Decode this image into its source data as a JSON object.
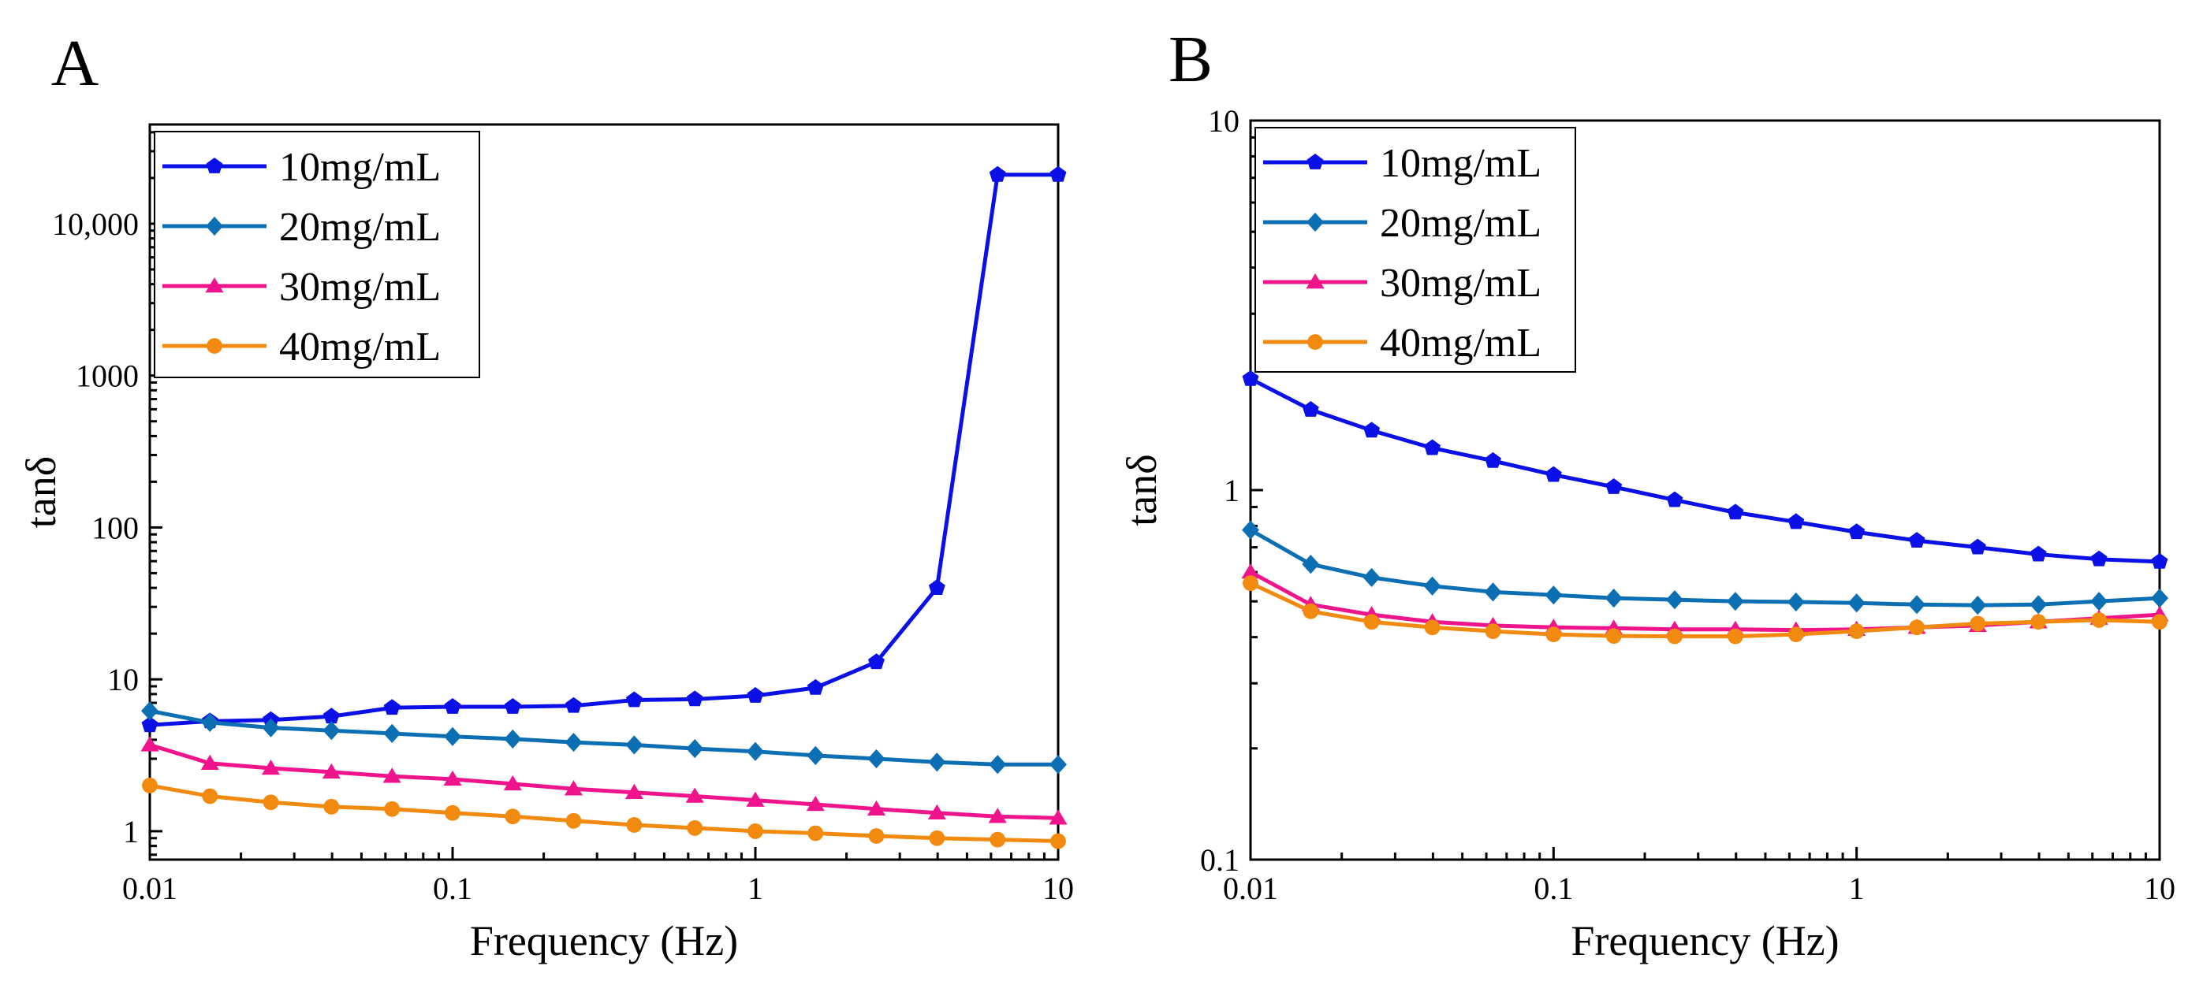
{
  "chart_data": [
    {
      "panel_label": "A",
      "type": "line",
      "xscale": "log",
      "yscale": "log",
      "xlim": [
        0.01,
        10
      ],
      "ylim": [
        0.65,
        45000
      ],
      "xlabel": "Frequency (Hz)",
      "ylabel": "tanδ",
      "xticks": [
        {
          "value": 0.01,
          "label": "0.01"
        },
        {
          "value": 0.1,
          "label": "0.1"
        },
        {
          "value": 1,
          "label": "1"
        },
        {
          "value": 10,
          "label": "10"
        }
      ],
      "yticks": [
        {
          "value": 1,
          "label": "1"
        },
        {
          "value": 10,
          "label": "10"
        },
        {
          "value": 100,
          "label": "100"
        },
        {
          "value": 1000,
          "label": "1000"
        },
        {
          "value": 10000,
          "label": "10,000"
        }
      ],
      "legend_position": "top-left",
      "x": [
        0.01,
        0.0158,
        0.0251,
        0.0398,
        0.0631,
        0.1,
        0.158,
        0.251,
        0.398,
        0.631,
        1,
        1.58,
        2.51,
        3.98,
        6.31,
        10
      ],
      "series": [
        {
          "name": "10mg/mL",
          "color": "#0a10e6",
          "marker": "pentagon",
          "values": [
            5.0,
            5.3,
            5.4,
            5.7,
            6.5,
            6.6,
            6.6,
            6.7,
            7.3,
            7.4,
            7.8,
            8.8,
            13,
            40,
            21000,
            21000
          ]
        },
        {
          "name": "20mg/mL",
          "color": "#0c6fb4",
          "marker": "diamond",
          "values": [
            6.2,
            5.2,
            4.8,
            4.6,
            4.4,
            4.2,
            4.05,
            3.85,
            3.7,
            3.5,
            3.35,
            3.15,
            3.0,
            2.85,
            2.75,
            2.75
          ]
        },
        {
          "name": "30mg/mL",
          "color": "#f0148c",
          "marker": "triangle",
          "values": [
            3.7,
            2.8,
            2.6,
            2.45,
            2.3,
            2.2,
            2.05,
            1.9,
            1.8,
            1.7,
            1.6,
            1.5,
            1.4,
            1.32,
            1.25,
            1.22
          ]
        },
        {
          "name": "40mg/mL",
          "color": "#f28a0f",
          "marker": "circle",
          "values": [
            2.0,
            1.7,
            1.55,
            1.45,
            1.4,
            1.32,
            1.25,
            1.17,
            1.1,
            1.05,
            1.0,
            0.97,
            0.93,
            0.9,
            0.88,
            0.86
          ]
        }
      ]
    },
    {
      "panel_label": "B",
      "type": "line",
      "xscale": "log",
      "yscale": "log",
      "xlim": [
        0.01,
        10
      ],
      "ylim": [
        0.1,
        10
      ],
      "xlabel": "Frequency (Hz)",
      "ylabel": "tanδ",
      "xticks": [
        {
          "value": 0.01,
          "label": "0.01"
        },
        {
          "value": 0.1,
          "label": "0.1"
        },
        {
          "value": 1,
          "label": "1"
        },
        {
          "value": 10,
          "label": "10"
        }
      ],
      "yticks": [
        {
          "value": 0.1,
          "label": "0.1"
        },
        {
          "value": 1,
          "label": "1"
        },
        {
          "value": 10,
          "label": "10"
        }
      ],
      "legend_position": "top-left",
      "x": [
        0.01,
        0.0158,
        0.0251,
        0.0398,
        0.0631,
        0.1,
        0.158,
        0.251,
        0.398,
        0.631,
        1,
        1.58,
        2.51,
        3.98,
        6.31,
        10
      ],
      "series": [
        {
          "name": "10mg/mL",
          "color": "#0a10e6",
          "marker": "pentagon",
          "values": [
            2.0,
            1.65,
            1.45,
            1.3,
            1.2,
            1.1,
            1.02,
            0.94,
            0.87,
            0.82,
            0.77,
            0.73,
            0.7,
            0.67,
            0.65,
            0.64
          ]
        },
        {
          "name": "20mg/mL",
          "color": "#0c6fb4",
          "marker": "diamond",
          "values": [
            0.78,
            0.63,
            0.58,
            0.55,
            0.53,
            0.52,
            0.51,
            0.505,
            0.5,
            0.498,
            0.495,
            0.49,
            0.488,
            0.49,
            0.5,
            0.51
          ]
        },
        {
          "name": "30mg/mL",
          "color": "#f0148c",
          "marker": "triangle",
          "values": [
            0.6,
            0.49,
            0.46,
            0.44,
            0.43,
            0.425,
            0.423,
            0.42,
            0.42,
            0.418,
            0.42,
            0.425,
            0.43,
            0.44,
            0.45,
            0.46
          ]
        },
        {
          "name": "40mg/mL",
          "color": "#f28a0f",
          "marker": "circle",
          "values": [
            0.56,
            0.47,
            0.44,
            0.425,
            0.415,
            0.407,
            0.403,
            0.402,
            0.402,
            0.407,
            0.415,
            0.425,
            0.435,
            0.44,
            0.445,
            0.44
          ]
        }
      ]
    }
  ]
}
